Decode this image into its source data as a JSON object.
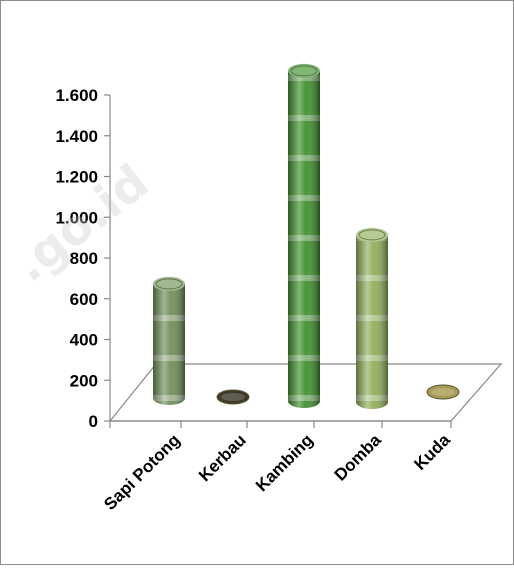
{
  "watermark_text": ".go.id",
  "chart_data": {
    "type": "bar",
    "title": "",
    "xlabel": "",
    "ylabel": "",
    "categories": [
      "Sapi Potong",
      "Kerbau",
      "Kambing",
      "Domba",
      "Kuda"
    ],
    "values": [
      560,
      0,
      1620,
      820,
      0
    ],
    "ylim": [
      0,
      1600
    ],
    "yticks": [
      0,
      200,
      400,
      600,
      800,
      1000,
      1200,
      1400,
      1600
    ],
    "ytick_labels": [
      "0",
      "200",
      "400",
      "600",
      "800",
      "1.000",
      "1.200",
      "1.400",
      "1.600"
    ],
    "grid": false,
    "legend": "none",
    "bar_style": "3d-cylinder-picture-fill",
    "colors": {
      "sapi_potong": "#6f8f5a",
      "kerbau": "#3d3a2a",
      "kambing": "#3f8f2e",
      "domba": "#8fae5a",
      "kuda": "#a89a55",
      "axis": "#888888",
      "text": "#000000"
    }
  }
}
